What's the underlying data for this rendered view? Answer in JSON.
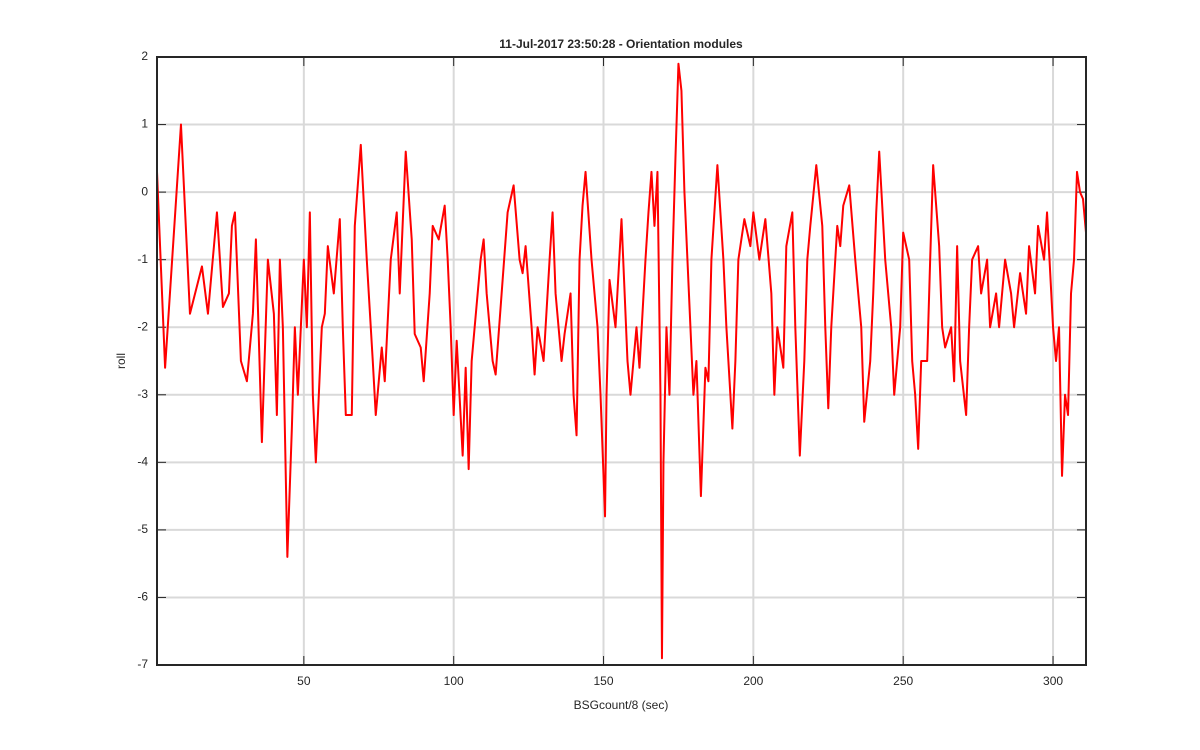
{
  "chart_data": {
    "type": "line",
    "title": "11-Jul-2017 23:50:28 - Orientation modules",
    "xlabel": "BSGcount/8 (sec)",
    "ylabel": "roll",
    "color": "#ff0000",
    "grid": true,
    "xlim": [
      1,
      311
    ],
    "ylim": [
      -7,
      2
    ],
    "xticks": [
      50,
      100,
      150,
      200,
      250,
      300
    ],
    "yticks": [
      -7,
      -6,
      -5,
      -4,
      -3,
      -2,
      -1,
      0,
      1,
      2
    ],
    "x": [
      1,
      3.7,
      9,
      12,
      16,
      18,
      21,
      23,
      25,
      26,
      27,
      29,
      31,
      33,
      34,
      36,
      38,
      40,
      41,
      42,
      43,
      44.5,
      46,
      47,
      48,
      50,
      51,
      52,
      53,
      54,
      56,
      57,
      58,
      60,
      62,
      63,
      64,
      66,
      67,
      69,
      71,
      73,
      74,
      76,
      77,
      79,
      81,
      82,
      84,
      86,
      87,
      89,
      90,
      92,
      93,
      95,
      97,
      98,
      99,
      100,
      101,
      103,
      104,
      105,
      106,
      107,
      109,
      110,
      111,
      113,
      114,
      116,
      118,
      120,
      122,
      123,
      124,
      126,
      127,
      128,
      130,
      132,
      133,
      134,
      136,
      137,
      139,
      140,
      141,
      142,
      143,
      144,
      146,
      148,
      149,
      150.5,
      151,
      152,
      154,
      156,
      158,
      159,
      161,
      162,
      164,
      165,
      166,
      167,
      168,
      169,
      169.5,
      170,
      171,
      172,
      173,
      174,
      175,
      176,
      177,
      179,
      180,
      181,
      182.5,
      184,
      185,
      186,
      188,
      190,
      191,
      193,
      194,
      195,
      197,
      199,
      200,
      202,
      204,
      206,
      207,
      208,
      210,
      211,
      213,
      214,
      215.5,
      217,
      218,
      219,
      221,
      223,
      224,
      225,
      226,
      228,
      229,
      230,
      232,
      234,
      236,
      237,
      239,
      240,
      241,
      242,
      244,
      246,
      247,
      249,
      250,
      252,
      253,
      254,
      255,
      256,
      258,
      259,
      260,
      262,
      263,
      264,
      266,
      267,
      268,
      269,
      271,
      272,
      273,
      275,
      276,
      278,
      279,
      281,
      282,
      284,
      286,
      287,
      289,
      291,
      292,
      294,
      295,
      297,
      298,
      300,
      301,
      302,
      303,
      304,
      305,
      306,
      307,
      308,
      309,
      310,
      311
    ],
    "values": [
      0.3,
      -2.6,
      1.0,
      -1.8,
      -1.1,
      -1.8,
      -0.3,
      -1.7,
      -1.5,
      -0.5,
      -0.3,
      -2.5,
      -2.8,
      -1.8,
      -0.7,
      -3.7,
      -1.0,
      -1.8,
      -3.3,
      -1.0,
      -2.0,
      -5.4,
      -3.5,
      -2.0,
      -3.0,
      -1.0,
      -2.0,
      -0.3,
      -3.0,
      -4.0,
      -2.0,
      -1.8,
      -0.8,
      -1.5,
      -0.4,
      -2.0,
      -3.3,
      -3.3,
      -0.5,
      0.7,
      -1.0,
      -2.5,
      -3.3,
      -2.3,
      -2.8,
      -1.0,
      -0.3,
      -1.5,
      0.6,
      -0.7,
      -2.1,
      -2.3,
      -2.8,
      -1.5,
      -0.5,
      -0.7,
      -0.2,
      -1.0,
      -2.0,
      -3.3,
      -2.2,
      -3.9,
      -2.6,
      -4.1,
      -2.5,
      -2.0,
      -1.0,
      -0.7,
      -1.5,
      -2.5,
      -2.7,
      -1.5,
      -0.3,
      0.1,
      -1.0,
      -1.2,
      -0.8,
      -2.0,
      -2.7,
      -2.0,
      -2.5,
      -1.0,
      -0.3,
      -1.5,
      -2.5,
      -2.1,
      -1.5,
      -3.0,
      -3.6,
      -1.0,
      -0.2,
      0.3,
      -1.0,
      -2.0,
      -3.0,
      -4.8,
      -3.0,
      -1.3,
      -2.0,
      -0.4,
      -2.5,
      -3.0,
      -2.0,
      -2.6,
      -1.0,
      -0.3,
      0.3,
      -0.5,
      0.3,
      -3.0,
      -6.9,
      -4.0,
      -2.0,
      -3.0,
      -1.0,
      0.5,
      1.9,
      1.5,
      0.0,
      -2.0,
      -3.0,
      -2.5,
      -4.5,
      -2.6,
      -2.8,
      -1.0,
      0.4,
      -1.0,
      -2.0,
      -3.5,
      -2.5,
      -1.0,
      -0.4,
      -0.8,
      -0.3,
      -1.0,
      -0.4,
      -1.5,
      -3.0,
      -2.0,
      -2.6,
      -0.8,
      -0.3,
      -2.0,
      -3.9,
      -2.5,
      -1.0,
      -0.5,
      0.4,
      -0.5,
      -2.0,
      -3.2,
      -2.0,
      -0.5,
      -0.8,
      -0.2,
      0.1,
      -1.0,
      -2.0,
      -3.4,
      -2.5,
      -1.5,
      -0.3,
      0.6,
      -1.0,
      -2.0,
      -3.0,
      -2.0,
      -0.6,
      -1.0,
      -2.5,
      -3.0,
      -3.8,
      -2.5,
      -2.5,
      -1.0,
      0.4,
      -0.8,
      -2.0,
      -2.3,
      -2.0,
      -2.8,
      -0.8,
      -2.5,
      -3.3,
      -2.0,
      -1.0,
      -0.8,
      -1.5,
      -1.0,
      -2.0,
      -1.5,
      -2.0,
      -1.0,
      -1.5,
      -2.0,
      -1.2,
      -1.8,
      -0.8,
      -1.5,
      -0.5,
      -1.0,
      -0.3,
      -2.0,
      -2.5,
      -2.0,
      -4.2,
      -3.0,
      -3.3,
      -1.5,
      -1.0,
      0.3,
      0.0,
      -0.1,
      -0.6
    ]
  }
}
